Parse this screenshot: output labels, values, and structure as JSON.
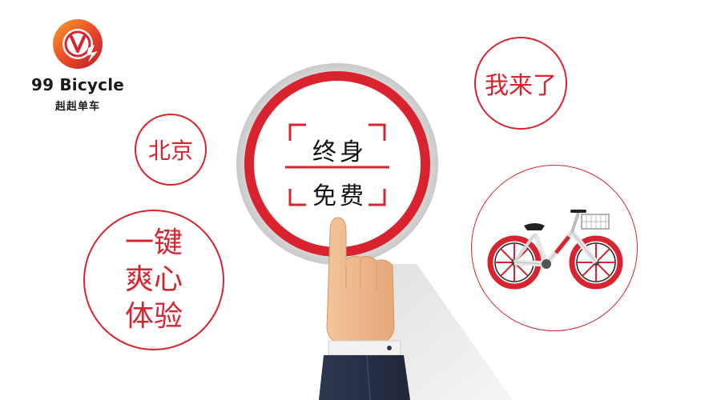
{
  "brand": {
    "name_en": "99 Bicycle",
    "name_cn": "赳赳单车",
    "logo_letter": "V",
    "primary_color": "#d9232e",
    "accent_color": "#f28a1f"
  },
  "bubbles": {
    "city": "北京",
    "greeting": "我来了",
    "feature_lines": [
      "一键",
      "爽心",
      "体验"
    ]
  },
  "badge": {
    "line1": "终身",
    "line2": "免费"
  },
  "icons": {
    "logo": "bicycle-logo-icon",
    "bike": "bicycle-icon",
    "hand": "pointing-hand-icon"
  }
}
